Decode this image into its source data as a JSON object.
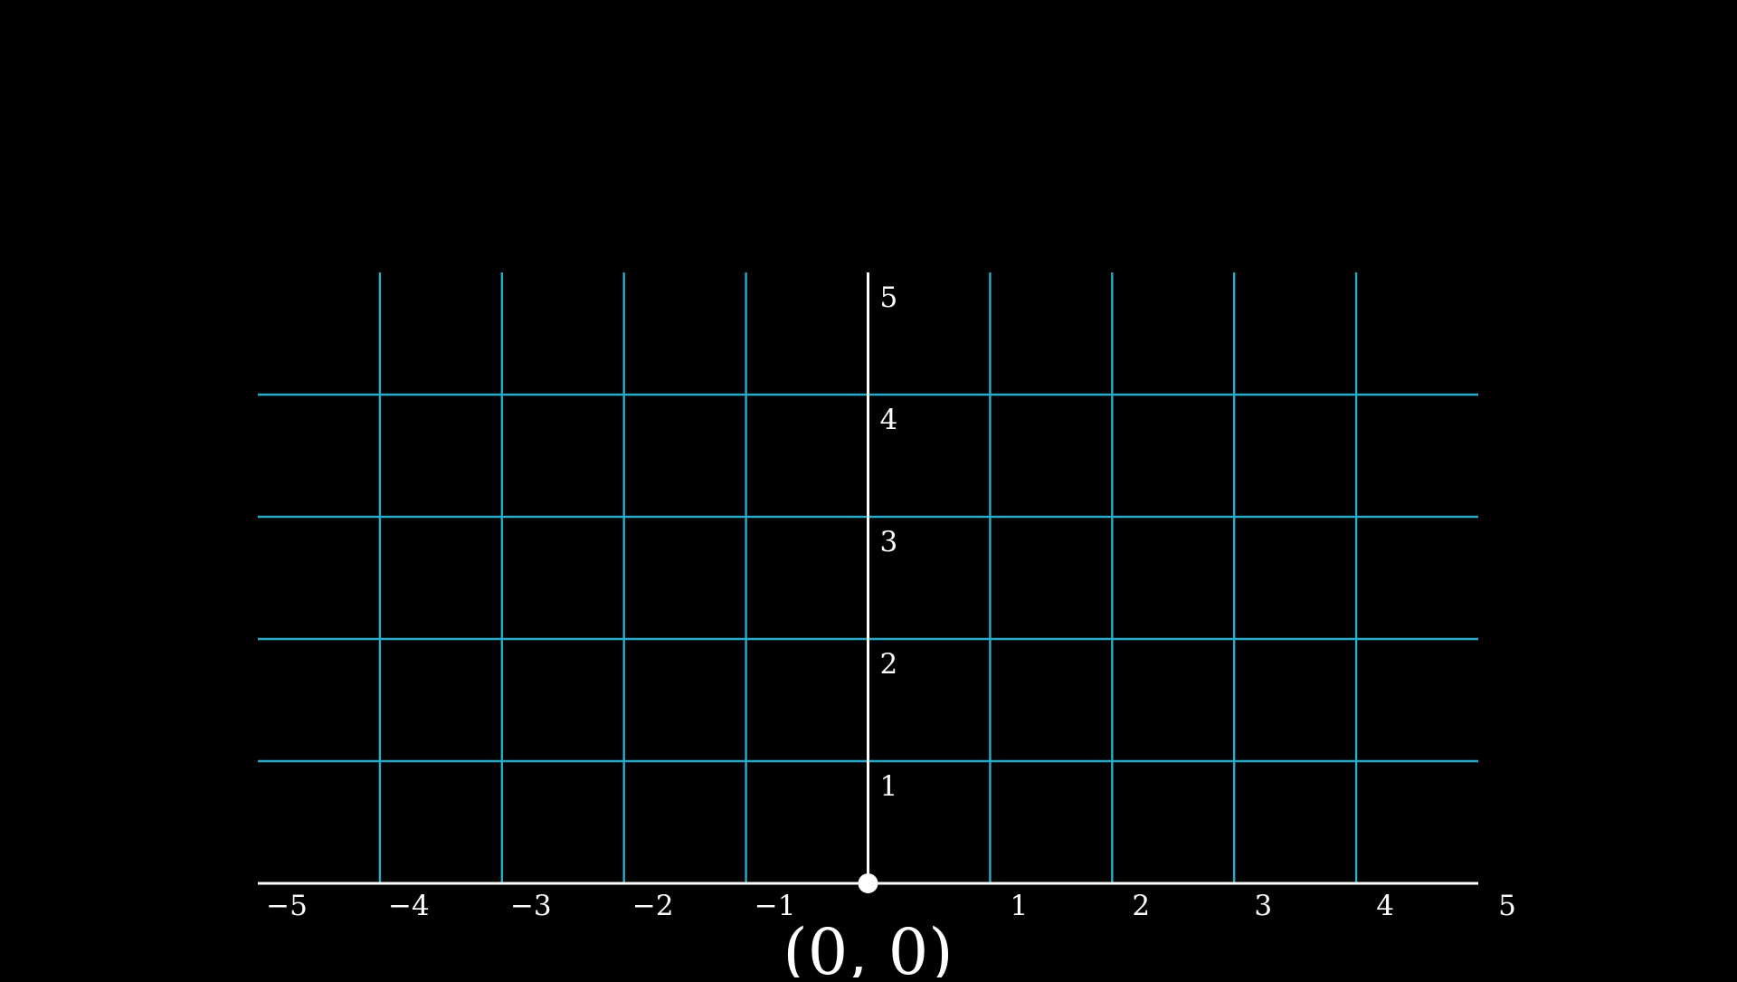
{
  "colors": {
    "background": "#000000",
    "grid": "#29abca",
    "axis": "#ffffff",
    "text": "#ffffff",
    "point": "#ffffff"
  },
  "chart_data": {
    "type": "coordinate-plane",
    "xlim": [
      -5,
      5
    ],
    "ylim": [
      0,
      5
    ],
    "grid": true,
    "x_tick_labels": [
      {
        "value": -5,
        "label": "−5"
      },
      {
        "value": -4,
        "label": "−4"
      },
      {
        "value": -3,
        "label": "−3"
      },
      {
        "value": -2,
        "label": "−2"
      },
      {
        "value": -1,
        "label": "−1"
      },
      {
        "value": 1,
        "label": "1"
      },
      {
        "value": 2,
        "label": "2"
      },
      {
        "value": 3,
        "label": "3"
      },
      {
        "value": 4,
        "label": "4"
      },
      {
        "value": 5,
        "label": "5"
      }
    ],
    "y_tick_labels": [
      {
        "value": 1,
        "label": "1"
      },
      {
        "value": 2,
        "label": "2"
      },
      {
        "value": 3,
        "label": "3"
      },
      {
        "value": 4,
        "label": "4"
      },
      {
        "value": 5,
        "label": "5"
      }
    ],
    "points": [
      {
        "x": 0,
        "y": 0,
        "label": "(0, 0)"
      }
    ]
  }
}
